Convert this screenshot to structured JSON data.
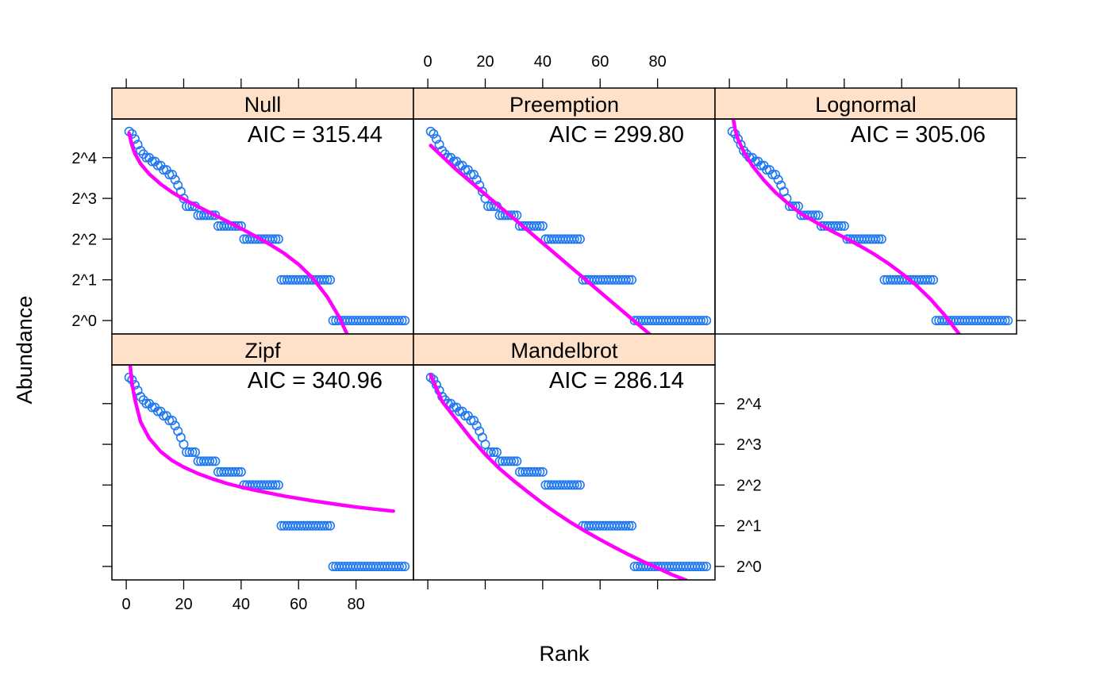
{
  "chart_data": {
    "type": "scatter",
    "layout": "lattice 3x2 (5 panels)",
    "xlabel": "Rank",
    "ylabel": "Abundance",
    "xlim": [
      -5,
      100
    ],
    "x_ticks": [
      0,
      20,
      40,
      60,
      80
    ],
    "x_tick_labels": [
      "0",
      "20",
      "40",
      "60",
      "80"
    ],
    "y_scale": "log2",
    "ylim_log2": [
      -0.33,
      4.95
    ],
    "y_ticks_log2": [
      0,
      1,
      2,
      3,
      4
    ],
    "y_tick_labels": [
      "2^0",
      "2^1",
      "2^2",
      "2^3",
      "2^4"
    ],
    "grid": false,
    "colors": {
      "points": "#1f78f0",
      "fit": "#ff00ff",
      "strip": "#ffe0c8"
    },
    "observed_abundance": [
      25,
      24,
      22,
      20,
      18,
      17,
      16,
      16,
      15,
      15,
      14,
      14,
      13,
      13,
      12,
      12,
      11,
      10,
      9,
      8,
      7,
      7,
      7,
      7,
      6,
      6,
      6,
      6,
      6,
      6,
      6,
      5,
      5,
      5,
      5,
      5,
      5,
      5,
      5,
      5,
      4,
      4,
      4,
      4,
      4,
      4,
      4,
      4,
      4,
      4,
      4,
      4,
      4,
      2,
      2,
      2,
      2,
      2,
      2,
      2,
      2,
      2,
      2,
      2,
      2,
      2,
      2,
      2,
      2,
      2,
      2,
      1,
      1,
      1,
      1,
      1,
      1,
      1,
      1,
      1,
      1,
      1,
      1,
      1,
      1,
      1,
      1,
      1,
      1,
      1,
      1,
      1,
      1,
      1,
      1,
      1,
      1
    ],
    "panels": [
      {
        "name": "Null",
        "aic_label": "AIC = 315.44",
        "fit_x": [
          1,
          2,
          3,
          5,
          8,
          12,
          16,
          20,
          25,
          30,
          35,
          40,
          45,
          50,
          55,
          60,
          65,
          70,
          74,
          78,
          80
        ],
        "fit_y_log2": [
          4.6,
          4.3,
          4.1,
          3.85,
          3.6,
          3.35,
          3.15,
          2.98,
          2.8,
          2.62,
          2.44,
          2.26,
          2.07,
          1.87,
          1.65,
          1.38,
          1.04,
          0.58,
          0.1,
          -0.5,
          -0.8
        ]
      },
      {
        "name": "Preemption",
        "aic_label": "AIC = 299.80",
        "fit_x": [
          1,
          10,
          20,
          30,
          40,
          50,
          60,
          70,
          75,
          80
        ],
        "fit_y_log2": [
          4.3,
          3.7,
          3.1,
          2.5,
          1.9,
          1.3,
          0.7,
          0.1,
          -0.2,
          -0.5
        ]
      },
      {
        "name": "Lognormal",
        "aic_label": "AIC = 305.06",
        "fit_x": [
          1,
          2,
          3,
          5,
          8,
          12,
          16,
          20,
          25,
          30,
          35,
          40,
          45,
          50,
          55,
          60,
          65,
          70,
          75,
          80,
          83,
          86
        ],
        "fit_y_log2": [
          5.1,
          4.7,
          4.45,
          4.15,
          3.8,
          3.45,
          3.15,
          2.9,
          2.62,
          2.42,
          2.22,
          2.04,
          1.85,
          1.65,
          1.42,
          1.16,
          0.87,
          0.53,
          0.13,
          -0.33,
          -0.62,
          -0.9
        ]
      },
      {
        "name": "Zipf",
        "aic_label": "AIC = 340.96",
        "fit_x": [
          1,
          2,
          3,
          5,
          8,
          12,
          16,
          20,
          25,
          30,
          35,
          40,
          45,
          50,
          55,
          60,
          65,
          70,
          75,
          80,
          85,
          90,
          93
        ],
        "fit_y_log2": [
          5.2,
          4.5,
          4.1,
          3.55,
          3.15,
          2.82,
          2.6,
          2.44,
          2.28,
          2.15,
          2.04,
          1.95,
          1.87,
          1.8,
          1.73,
          1.67,
          1.61,
          1.56,
          1.51,
          1.46,
          1.42,
          1.38,
          1.36
        ]
      },
      {
        "name": "Mandelbrot",
        "aic_label": "AIC = 286.14",
        "fit_x": [
          1,
          5,
          10,
          15,
          20,
          25,
          30,
          35,
          40,
          45,
          50,
          55,
          60,
          65,
          70,
          75,
          80,
          85,
          90
        ],
        "fit_y_log2": [
          4.7,
          4.05,
          3.6,
          3.15,
          2.75,
          2.4,
          2.1,
          1.82,
          1.55,
          1.3,
          1.07,
          0.86,
          0.66,
          0.47,
          0.29,
          0.12,
          -0.04,
          -0.2,
          -0.34
        ]
      }
    ]
  }
}
